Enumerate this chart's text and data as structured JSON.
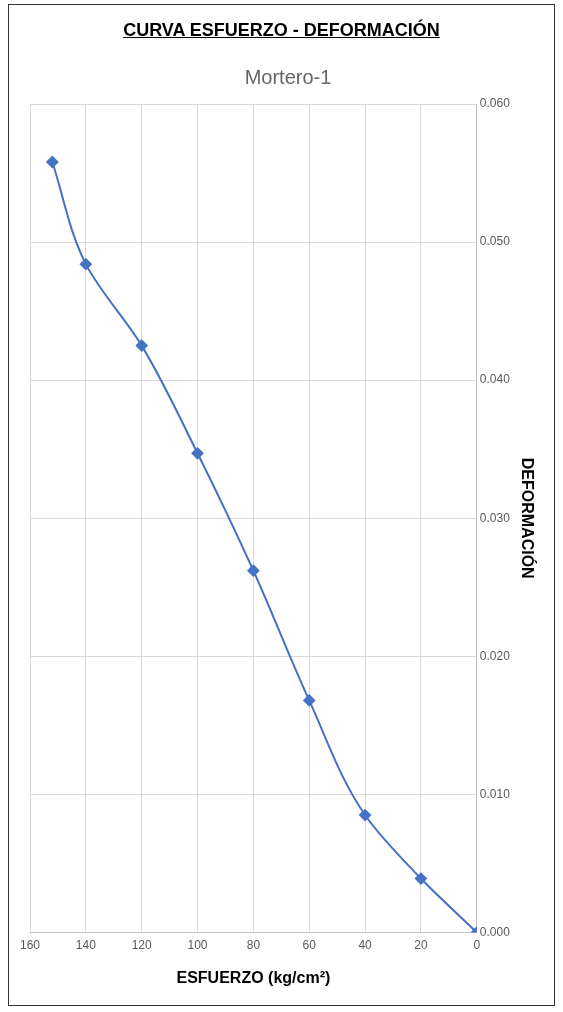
{
  "chart_data": {
    "type": "line",
    "title": "CURVA ESFUERZO - DEFORMACIÓN",
    "subtitle": "Mortero-1",
    "xlabel": "ESFUERZO (kg/cm²)",
    "ylabel": "DEFORMACIÓN",
    "x": [
      0,
      20,
      40,
      60,
      80,
      100,
      120,
      140,
      152
    ],
    "series": [
      {
        "color": "#4472c4",
        "values": [
          0,
          0.0039,
          0.0085,
          0.0168,
          0.0262,
          0.0347,
          0.0425,
          0.0484,
          0.0558
        ]
      }
    ],
    "xlim": [
      160,
      0
    ],
    "xticks": [
      0,
      20,
      40,
      60,
      80,
      100,
      120,
      140,
      160
    ],
    "ylim": [
      0,
      0.06
    ],
    "yticks": [
      {
        "value": 0,
        "label": "0.000"
      },
      {
        "value": 0.01,
        "label": "0.010"
      },
      {
        "value": 0.02,
        "label": "0.020"
      },
      {
        "value": 0.03,
        "label": "0.030"
      },
      {
        "value": 0.04,
        "label": "0.040"
      },
      {
        "value": 0.05,
        "label": "0.050"
      },
      {
        "value": 0.06,
        "label": "0.060"
      }
    ],
    "grid": true,
    "legend": false,
    "marker": "diamond",
    "line_style": "solid"
  }
}
